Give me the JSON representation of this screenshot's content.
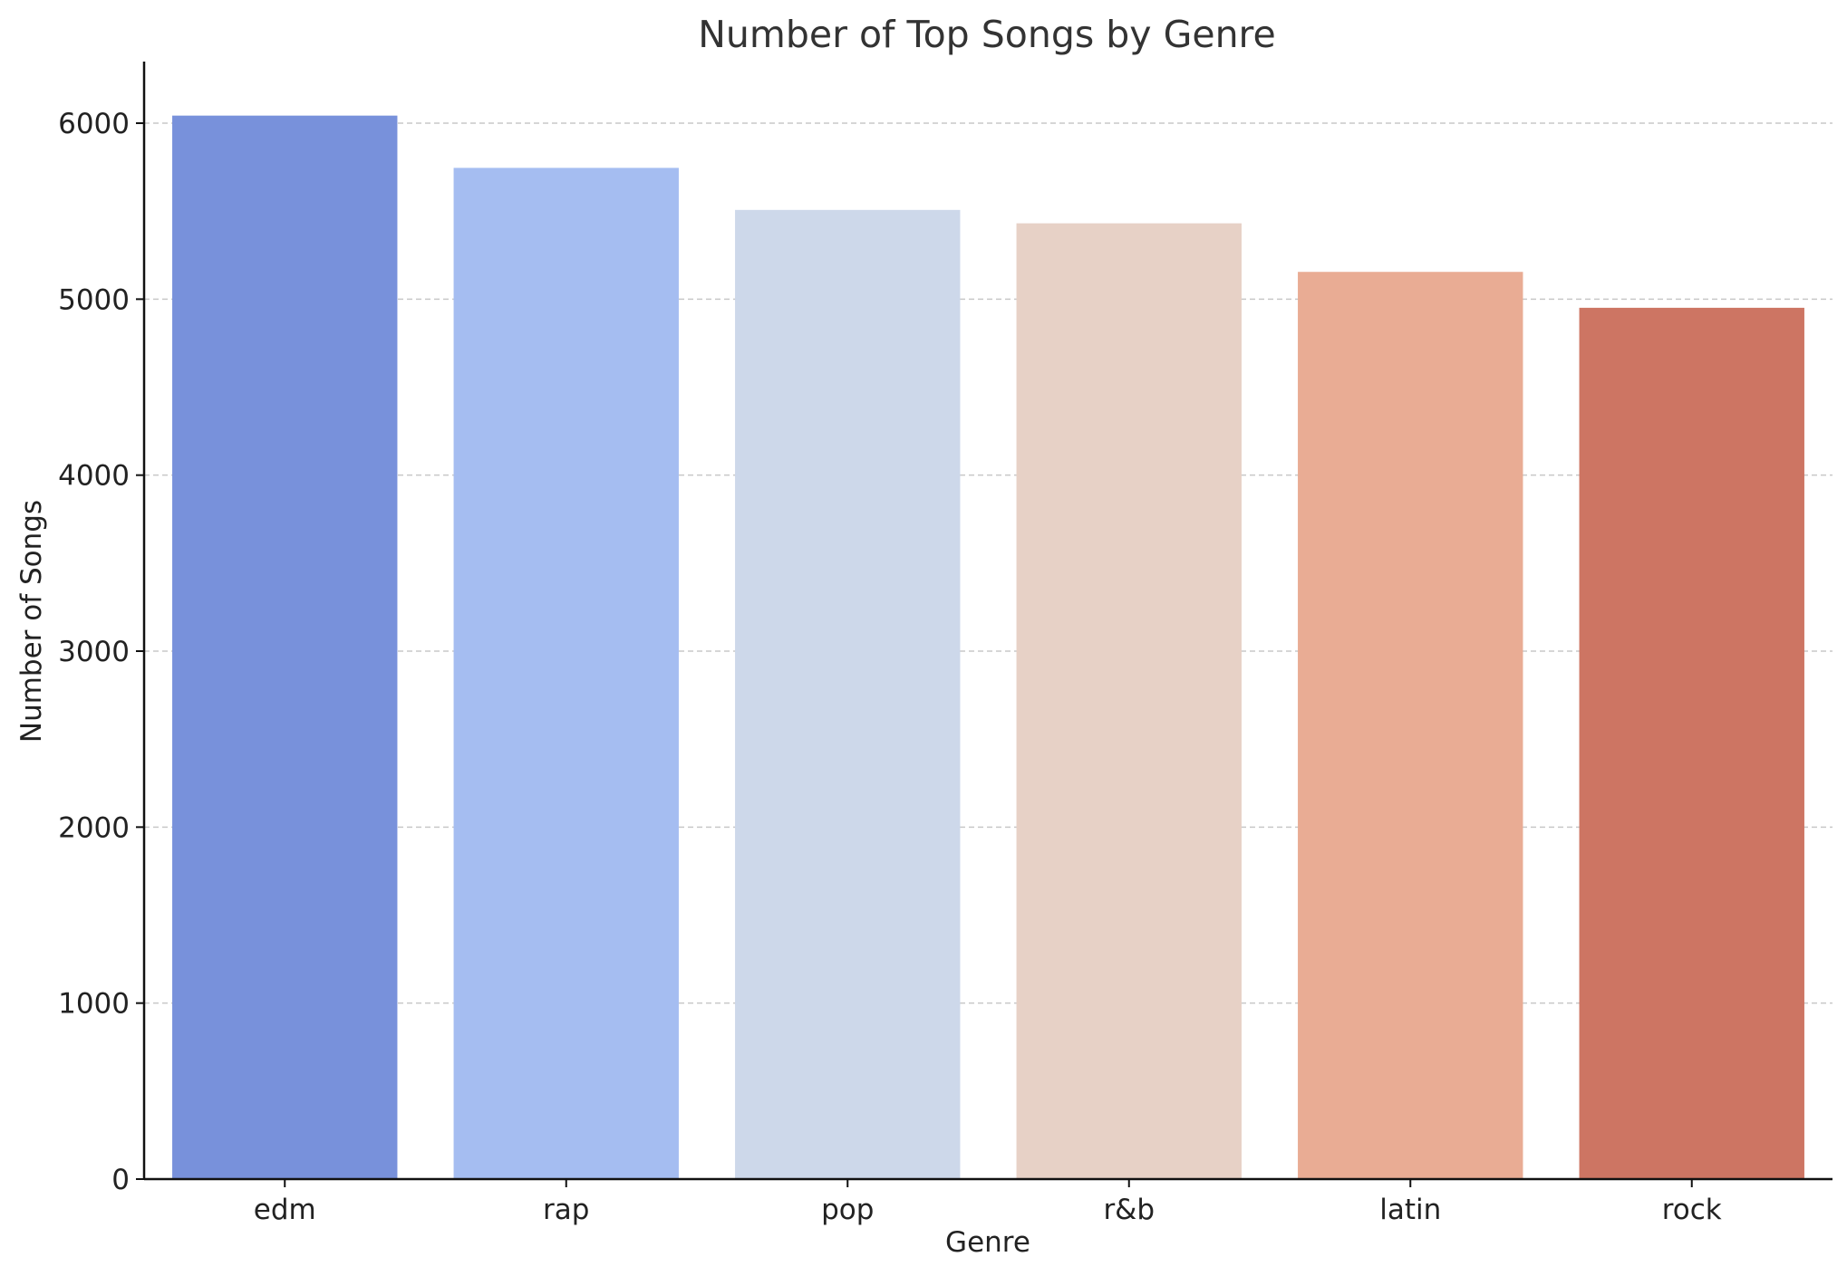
{
  "chart_data": {
    "type": "bar",
    "title": "Number of Top Songs by Genre",
    "xlabel": "Genre",
    "ylabel": "Number of Songs",
    "categories": [
      "edm",
      "rap",
      "pop",
      "r&b",
      "latin",
      "rock"
    ],
    "values": [
      6043,
      5746,
      5507,
      5431,
      5155,
      4951
    ],
    "colors": [
      "#7891db",
      "#a5bdf1",
      "#cdd8ea",
      "#e7d1c6",
      "#e9ac94",
      "#cd7563"
    ],
    "ylim": [
      0,
      6350
    ],
    "yticks": [
      0,
      1000,
      2000,
      3000,
      4000,
      5000,
      6000
    ],
    "grid": "y-dashed",
    "legend": "none"
  }
}
